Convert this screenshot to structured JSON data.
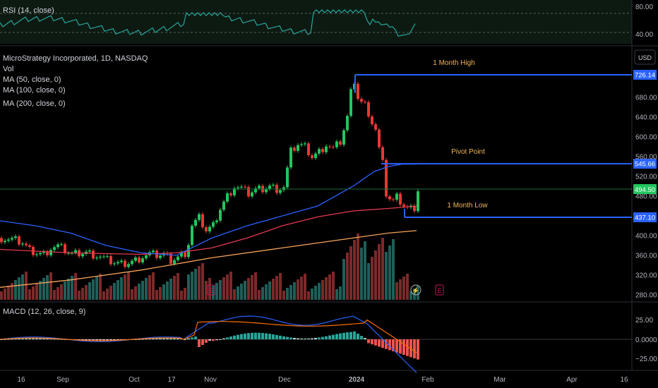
{
  "colors": {
    "background": "#000000",
    "up": "#26a69a",
    "down": "#ef5350",
    "candle_up": "#22c55e",
    "candle_down": "#e53935",
    "ma50": "#2962ff",
    "ma100": "#e53950",
    "ma200": "#f7a35c",
    "rsi": "#26a69a",
    "macd": "#2962ff",
    "signal": "#ff6d00",
    "level_line": "#2962ff",
    "annotation": "#f0b45a",
    "axis_text": "#b2b5be"
  },
  "rsi_panel": {
    "title": "RSI (14, close)",
    "ticks": [
      "80.00",
      "40.00"
    ]
  },
  "main_panel": {
    "title": "MicroStrategy Incorporated, 1D, NASDAQ",
    "vol_label": "Vol",
    "ma_labels": [
      "MA (50, close, 0)",
      "MA (100, close, 0)",
      "MA (200, close, 0)"
    ],
    "currency": "USD",
    "price_ticks": [
      "680.00",
      "640.00",
      "600.00",
      "560.00",
      "520.00",
      "480.00",
      "400.00",
      "360.00",
      "320.00",
      "280.00"
    ],
    "current_price": "494.50",
    "event_marker": "E",
    "flash_marker": "⚡"
  },
  "levels": [
    {
      "name": "1 Month High",
      "price_label": "726.14",
      "value": 726.14
    },
    {
      "name": "Pivot Point",
      "price_label": "545.66",
      "value": 545.66
    },
    {
      "name": "1 Month Low",
      "price_label": "437.10",
      "value": 437.1
    }
  ],
  "macd_panel": {
    "title": "MACD (12, 26, close, 9)",
    "ticks": [
      "25.00",
      "0.0000",
      "−25.00"
    ]
  },
  "x_axis": {
    "labels": [
      "16",
      "Sep",
      "Oct",
      "17",
      "Nov",
      "Dec",
      "2024",
      "Feb",
      "Mar",
      "Apr",
      "16"
    ]
  },
  "chart_data": {
    "type": "candlestick",
    "symbol": "MicroStrategy Incorporated, 1D, NASDAQ",
    "y_range": [
      270,
      760
    ],
    "approx_close_path": [
      [
        0,
        395
      ],
      [
        10,
        392
      ],
      [
        20,
        390
      ],
      [
        30,
        385
      ],
      [
        40,
        370
      ],
      [
        50,
        365
      ],
      [
        60,
        362
      ],
      [
        70,
        375
      ],
      [
        80,
        378
      ],
      [
        90,
        370
      ],
      [
        100,
        362
      ],
      [
        110,
        365
      ],
      [
        120,
        366
      ],
      [
        130,
        362
      ],
      [
        140,
        357
      ],
      [
        150,
        350
      ],
      [
        160,
        345
      ],
      [
        170,
        342
      ],
      [
        180,
        345
      ],
      [
        190,
        350
      ],
      [
        200,
        358
      ],
      [
        210,
        362
      ],
      [
        220,
        360
      ],
      [
        230,
        362
      ],
      [
        240,
        350
      ],
      [
        250,
        356
      ],
      [
        260,
        365
      ],
      [
        265,
        385
      ],
      [
        270,
        420
      ],
      [
        280,
        435
      ],
      [
        290,
        410
      ],
      [
        300,
        420
      ],
      [
        310,
        455
      ],
      [
        320,
        480
      ],
      [
        330,
        500
      ],
      [
        340,
        495
      ],
      [
        350,
        485
      ],
      [
        360,
        493
      ],
      [
        370,
        495
      ],
      [
        380,
        500
      ],
      [
        390,
        495
      ],
      [
        400,
        498
      ],
      [
        410,
        570
      ],
      [
        420,
        585
      ],
      [
        430,
        580
      ],
      [
        440,
        560
      ],
      [
        450,
        570
      ],
      [
        460,
        585
      ],
      [
        470,
        575
      ],
      [
        480,
        590
      ],
      [
        490,
        640
      ],
      [
        495,
        690
      ],
      [
        500,
        715
      ],
      [
        505,
        680
      ],
      [
        510,
        670
      ],
      [
        515,
        665
      ],
      [
        520,
        650
      ],
      [
        525,
        630
      ],
      [
        530,
        615
      ],
      [
        535,
        575
      ],
      [
        540,
        545
      ],
      [
        545,
        485
      ],
      [
        550,
        475
      ],
      [
        555,
        470
      ],
      [
        560,
        478
      ],
      [
        565,
        470
      ],
      [
        570,
        462
      ],
      [
        575,
        456
      ],
      [
        580,
        455
      ],
      [
        585,
        458
      ],
      [
        590,
        494
      ]
    ],
    "ma50": [
      [
        0,
        430
      ],
      [
        50,
        420
      ],
      [
        100,
        405
      ],
      [
        150,
        380
      ],
      [
        200,
        365
      ],
      [
        250,
        360
      ],
      [
        300,
        395
      ],
      [
        350,
        420
      ],
      [
        400,
        440
      ],
      [
        450,
        460
      ],
      [
        500,
        500
      ],
      [
        530,
        530
      ],
      [
        550,
        540
      ],
      [
        570,
        545
      ],
      [
        590,
        545
      ]
    ],
    "ma100": [
      [
        0,
        372
      ],
      [
        100,
        365
      ],
      [
        200,
        362
      ],
      [
        250,
        365
      ],
      [
        300,
        375
      ],
      [
        350,
        395
      ],
      [
        400,
        420
      ],
      [
        450,
        438
      ],
      [
        500,
        450
      ],
      [
        550,
        455
      ],
      [
        590,
        460
      ]
    ],
    "ma200": [
      [
        0,
        295
      ],
      [
        100,
        310
      ],
      [
        200,
        330
      ],
      [
        300,
        355
      ],
      [
        400,
        375
      ],
      [
        450,
        385
      ],
      [
        500,
        395
      ],
      [
        550,
        405
      ],
      [
        590,
        410
      ]
    ]
  }
}
